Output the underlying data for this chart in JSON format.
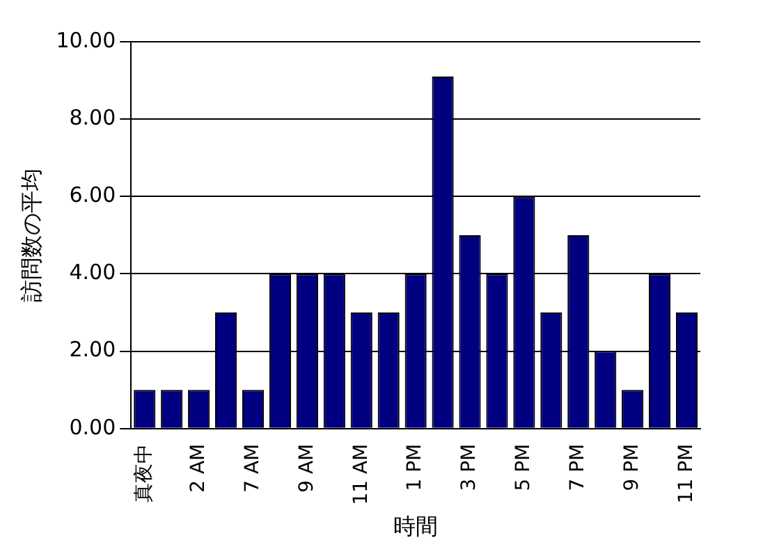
{
  "chart_data": {
    "type": "bar",
    "xlabel": "時間",
    "ylabel": "訪問数の平均",
    "categories": [
      "真夜中",
      null,
      "2 AM",
      null,
      "7 AM",
      null,
      "9 AM",
      null,
      "11 AM",
      null,
      "1 PM",
      null,
      "3 PM",
      null,
      "5 PM",
      null,
      "7 PM",
      null,
      "9 PM",
      null,
      "11 PM"
    ],
    "values": [
      1,
      1,
      1,
      3,
      1,
      4,
      4,
      4,
      3,
      3,
      4,
      9.1,
      5,
      4,
      6,
      3,
      5,
      2,
      1,
      4,
      3
    ],
    "color": "#000080",
    "ylim": [
      0,
      10
    ],
    "yticks": [
      {
        "value": 0,
        "label": "0.00"
      },
      {
        "value": 2,
        "label": "2.00"
      },
      {
        "value": 4,
        "label": "4.00"
      },
      {
        "value": 6,
        "label": "6.00"
      },
      {
        "value": 8,
        "label": "8.00"
      },
      {
        "value": 10,
        "label": "10.00"
      }
    ],
    "grid": "y",
    "legend": false
  }
}
